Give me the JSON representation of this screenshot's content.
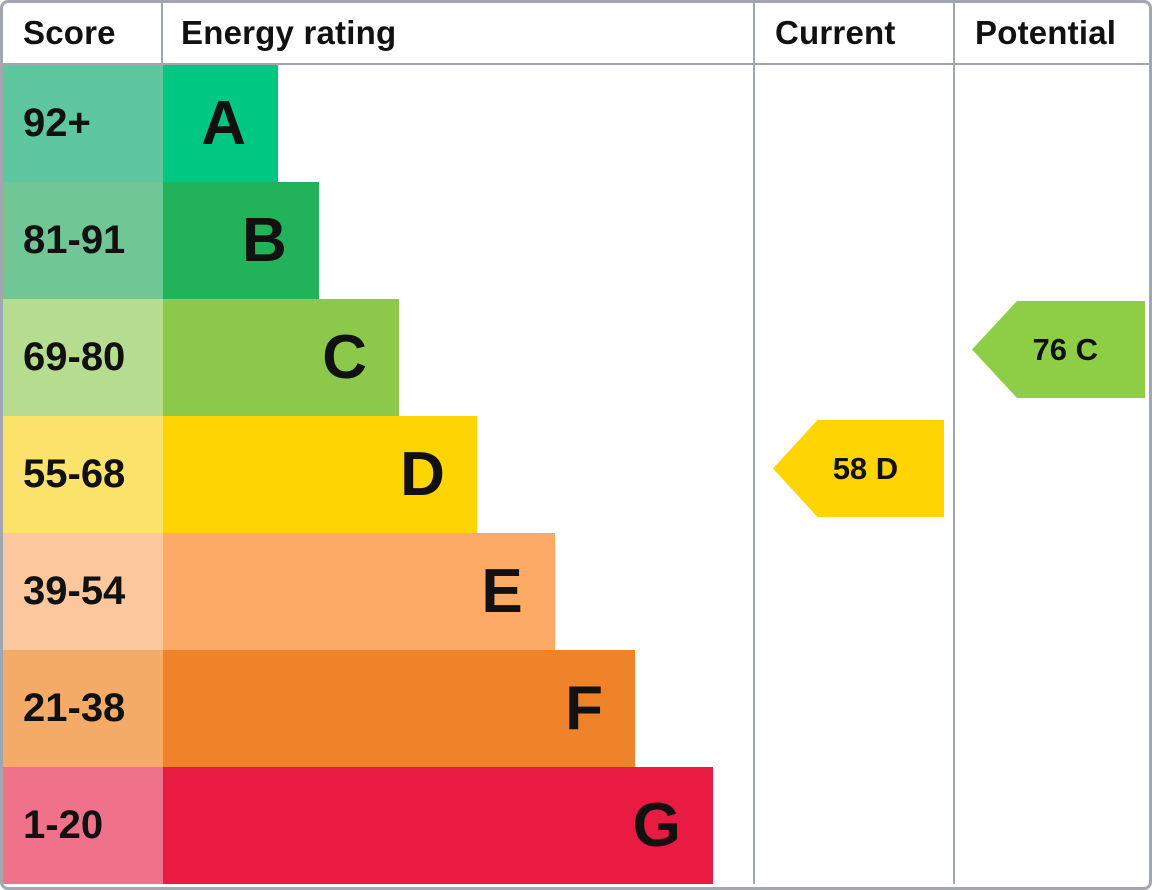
{
  "header": {
    "score": "Score",
    "rating": "Energy rating",
    "current": "Current",
    "potential": "Potential"
  },
  "bands": [
    {
      "letter": "A",
      "score": "92+",
      "bar_color": "#00c781",
      "cell_color": "#5fc7a0",
      "bar_pct": 19.5
    },
    {
      "letter": "B",
      "score": "81-91",
      "bar_color": "#22b25a",
      "cell_color": "#70c795",
      "bar_pct": 26.4
    },
    {
      "letter": "C",
      "score": "69-80",
      "bar_color": "#8cc94a",
      "cell_color": "#b6dc90",
      "bar_pct": 40.0
    },
    {
      "letter": "D",
      "score": "55-68",
      "bar_color": "#fed402",
      "cell_color": "#fbe26a",
      "bar_pct": 53.2
    },
    {
      "letter": "E",
      "score": "39-54",
      "bar_color": "#fcaa65",
      "cell_color": "#fcc79c",
      "bar_pct": 66.4
    },
    {
      "letter": "F",
      "score": "21-38",
      "bar_color": "#ee8329",
      "cell_color": "#f4ab68",
      "bar_pct": 80.0
    },
    {
      "letter": "G",
      "score": "1-20",
      "bar_color": "#ea1b43",
      "cell_color": "#f0718a",
      "bar_pct": 93.2
    }
  ],
  "current_arrow": {
    "label": "58 D",
    "value": 58,
    "rating": "D",
    "band_index": 3,
    "color": "#fed402"
  },
  "potential_arrow": {
    "label": "76 C",
    "value": 76,
    "rating": "C",
    "band_index": 2,
    "color": "#8dce46"
  },
  "colors": {
    "border": "#a1a6b1",
    "text": "#111111",
    "background": "#ffffff"
  },
  "chart_data": {
    "type": "bar",
    "title": "Energy rating",
    "columns": [
      "Score",
      "Energy rating",
      "Current",
      "Potential"
    ],
    "categories": [
      "A",
      "B",
      "C",
      "D",
      "E",
      "F",
      "G"
    ],
    "score_ranges": [
      "92+",
      "81-91",
      "69-80",
      "55-68",
      "39-54",
      "21-38",
      "1-20"
    ],
    "bar_lengths_pct": [
      19.5,
      26.4,
      40.0,
      53.2,
      66.4,
      80.0,
      93.2
    ],
    "band_colors": [
      "#00c781",
      "#22b25a",
      "#8cc94a",
      "#fed402",
      "#fcaa65",
      "#ee8329",
      "#ea1b43"
    ],
    "current": {
      "value": 58,
      "rating": "D"
    },
    "potential": {
      "value": 76,
      "rating": "C"
    },
    "legend_position": "none",
    "grid": false
  }
}
